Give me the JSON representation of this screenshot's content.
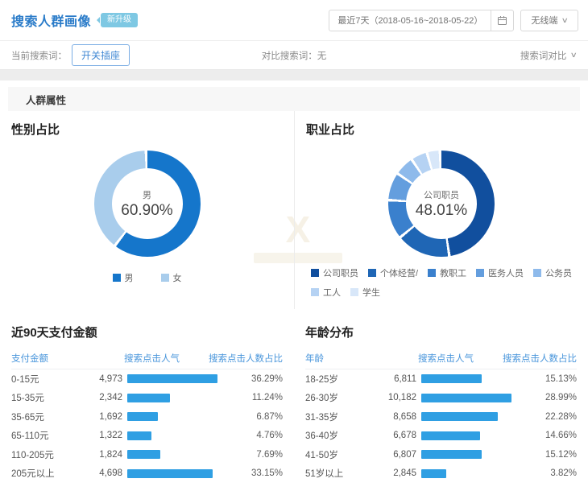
{
  "header": {
    "title": "搜索人群画像",
    "badge": "新升级",
    "date_range": "最近7天（2018-05-16~2018-05-22）",
    "terminal": "无线端"
  },
  "filter": {
    "current_label": "当前搜索词：",
    "keyword": "开关插座",
    "compare_text": "对比搜索词：无",
    "compare_action": "搜索词对比"
  },
  "section": {
    "title": "人群属性"
  },
  "icons": {
    "chevron_down": "∨",
    "calendar": "calendar-grid",
    "watermark_glyph": "X"
  },
  "colors": {
    "accent_blue": "#2b7cc9",
    "bar_blue": "#2f9fe3",
    "male_blue": "#1576cb",
    "female_blue": "#a9cdec",
    "table_header_blue": "#4895db"
  },
  "chart_data": [
    {
      "type": "pie",
      "title": "性别占比",
      "center_label": "男",
      "center_value": "60.90%",
      "segments": [
        {
          "label": "男",
          "value": 60.9,
          "color": "#1576cb"
        },
        {
          "label": "女",
          "value": 39.1,
          "color": "#a9cdec"
        }
      ]
    },
    {
      "type": "pie",
      "title": "职业占比",
      "center_label": "公司职员",
      "center_value": "48.01%",
      "segments": [
        {
          "label": "公司职员",
          "value": 48.01,
          "color": "#114f9e"
        },
        {
          "label": "个体经营/",
          "value": 16.49,
          "color": "#1f66b5"
        },
        {
          "label": "教职工",
          "value": 12.0,
          "color": "#3a80cd"
        },
        {
          "label": "医务人员",
          "value": 8.5,
          "color": "#649ede"
        },
        {
          "label": "公务员",
          "value": 6.0,
          "color": "#8ebaeb"
        },
        {
          "label": "工人",
          "value": 5.0,
          "color": "#b5d2f3"
        },
        {
          "label": "学生",
          "value": 4.0,
          "color": "#d8e7f9"
        }
      ]
    },
    {
      "type": "table",
      "title": "近90天支付金额",
      "columns": [
        "支付金额",
        "搜索点击人气",
        "搜索点击人数占比"
      ],
      "bar_color": "#2f9fe3",
      "rows": [
        {
          "label": "0-15元",
          "display": "4,973",
          "value": 4973,
          "pct": "36.29%"
        },
        {
          "label": "15-35元",
          "display": "2,342",
          "value": 2342,
          "pct": "11.24%"
        },
        {
          "label": "35-65元",
          "display": "1,692",
          "value": 1692,
          "pct": "6.87%"
        },
        {
          "label": "65-110元",
          "display": "1,322",
          "value": 1322,
          "pct": "4.76%"
        },
        {
          "label": "110-205元",
          "display": "1,824",
          "value": 1824,
          "pct": "7.69%"
        },
        {
          "label": "205元以上",
          "display": "4,698",
          "value": 4698,
          "pct": "33.15%"
        }
      ]
    },
    {
      "type": "table",
      "title": "年龄分布",
      "columns": [
        "年龄",
        "搜索点击人气",
        "搜索点击人数占比"
      ],
      "bar_color": "#2f9fe3",
      "rows": [
        {
          "label": "18-25岁",
          "display": "6,811",
          "value": 6811,
          "pct": "15.13%"
        },
        {
          "label": "26-30岁",
          "display": "10,182",
          "value": 10182,
          "pct": "28.99%"
        },
        {
          "label": "31-35岁",
          "display": "8,658",
          "value": 8658,
          "pct": "22.28%"
        },
        {
          "label": "36-40岁",
          "display": "6,678",
          "value": 6678,
          "pct": "14.66%"
        },
        {
          "label": "41-50岁",
          "display": "6,807",
          "value": 6807,
          "pct": "15.12%"
        },
        {
          "label": "51岁以上",
          "display": "2,845",
          "value": 2845,
          "pct": "3.82%"
        }
      ]
    }
  ]
}
